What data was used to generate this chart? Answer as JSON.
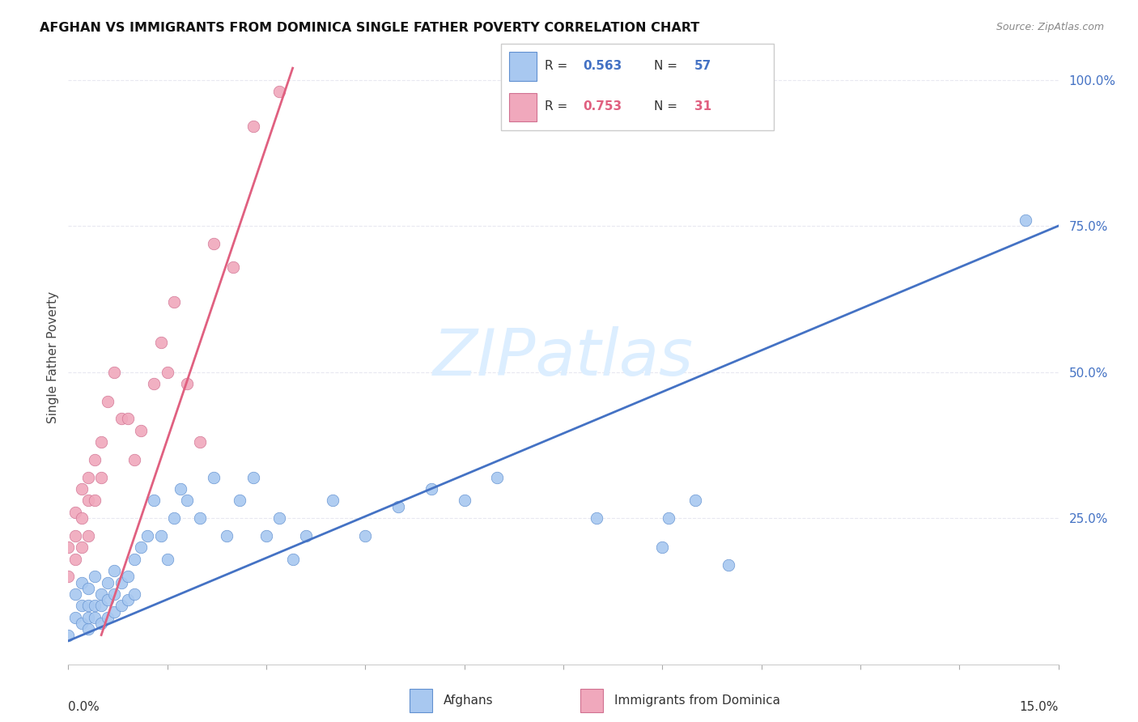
{
  "title": "AFGHAN VS IMMIGRANTS FROM DOMINICA SINGLE FATHER POVERTY CORRELATION CHART",
  "source": "Source: ZipAtlas.com",
  "ylabel": "Single Father Poverty",
  "bg_color": "#ffffff",
  "grid_color": "#e8e8f0",
  "afghan_color": "#a8c8f0",
  "dominica_color": "#f0a8bc",
  "afghan_edge_color": "#6090d0",
  "dominica_edge_color": "#d07090",
  "afghan_line_color": "#4472c4",
  "dominica_line_color": "#e06080",
  "watermark_color": "#dceeff",
  "xlim": [
    0.0,
    0.15
  ],
  "ylim": [
    0.0,
    1.05
  ],
  "ytick_vals": [
    0.25,
    0.5,
    0.75,
    1.0
  ],
  "ytick_labels": [
    "25.0%",
    "50.0%",
    "75.0%",
    "100.0%"
  ],
  "legend_R_af": "0.563",
  "legend_N_af": "57",
  "legend_R_dom": "0.753",
  "legend_N_dom": "31",
  "legend_label_af": "Afghans",
  "legend_label_dom": "Immigrants from Dominica",
  "afghan_line_x0": 0.0,
  "afghan_line_y0": 0.04,
  "afghan_line_x1": 0.15,
  "afghan_line_y1": 0.75,
  "dominica_line_x0": 0.005,
  "dominica_line_y0": 0.05,
  "dominica_line_x1": 0.034,
  "dominica_line_y1": 1.02,
  "afghan_x": [
    0.0,
    0.001,
    0.001,
    0.002,
    0.002,
    0.002,
    0.003,
    0.003,
    0.003,
    0.003,
    0.004,
    0.004,
    0.004,
    0.005,
    0.005,
    0.005,
    0.006,
    0.006,
    0.006,
    0.007,
    0.007,
    0.007,
    0.008,
    0.008,
    0.009,
    0.009,
    0.01,
    0.01,
    0.011,
    0.012,
    0.013,
    0.014,
    0.015,
    0.016,
    0.017,
    0.018,
    0.02,
    0.022,
    0.024,
    0.026,
    0.028,
    0.03,
    0.032,
    0.034,
    0.036,
    0.04,
    0.045,
    0.05,
    0.055,
    0.06,
    0.065,
    0.08,
    0.09,
    0.1,
    0.095,
    0.091,
    0.145
  ],
  "afghan_y": [
    0.05,
    0.08,
    0.12,
    0.07,
    0.1,
    0.14,
    0.06,
    0.08,
    0.1,
    0.13,
    0.08,
    0.1,
    0.15,
    0.07,
    0.1,
    0.12,
    0.08,
    0.11,
    0.14,
    0.09,
    0.12,
    0.16,
    0.1,
    0.14,
    0.11,
    0.15,
    0.12,
    0.18,
    0.2,
    0.22,
    0.28,
    0.22,
    0.18,
    0.25,
    0.3,
    0.28,
    0.25,
    0.32,
    0.22,
    0.28,
    0.32,
    0.22,
    0.25,
    0.18,
    0.22,
    0.28,
    0.22,
    0.27,
    0.3,
    0.28,
    0.32,
    0.25,
    0.2,
    0.17,
    0.28,
    0.25,
    0.76
  ],
  "dominica_x": [
    0.0,
    0.0,
    0.001,
    0.001,
    0.001,
    0.002,
    0.002,
    0.002,
    0.003,
    0.003,
    0.003,
    0.004,
    0.004,
    0.005,
    0.005,
    0.006,
    0.007,
    0.008,
    0.009,
    0.01,
    0.011,
    0.013,
    0.014,
    0.015,
    0.016,
    0.018,
    0.02,
    0.022,
    0.025,
    0.028,
    0.032
  ],
  "dominica_y": [
    0.15,
    0.2,
    0.18,
    0.22,
    0.26,
    0.2,
    0.25,
    0.3,
    0.22,
    0.28,
    0.32,
    0.28,
    0.35,
    0.32,
    0.38,
    0.45,
    0.5,
    0.42,
    0.42,
    0.35,
    0.4,
    0.48,
    0.55,
    0.5,
    0.62,
    0.48,
    0.38,
    0.72,
    0.68,
    0.92,
    0.98
  ]
}
